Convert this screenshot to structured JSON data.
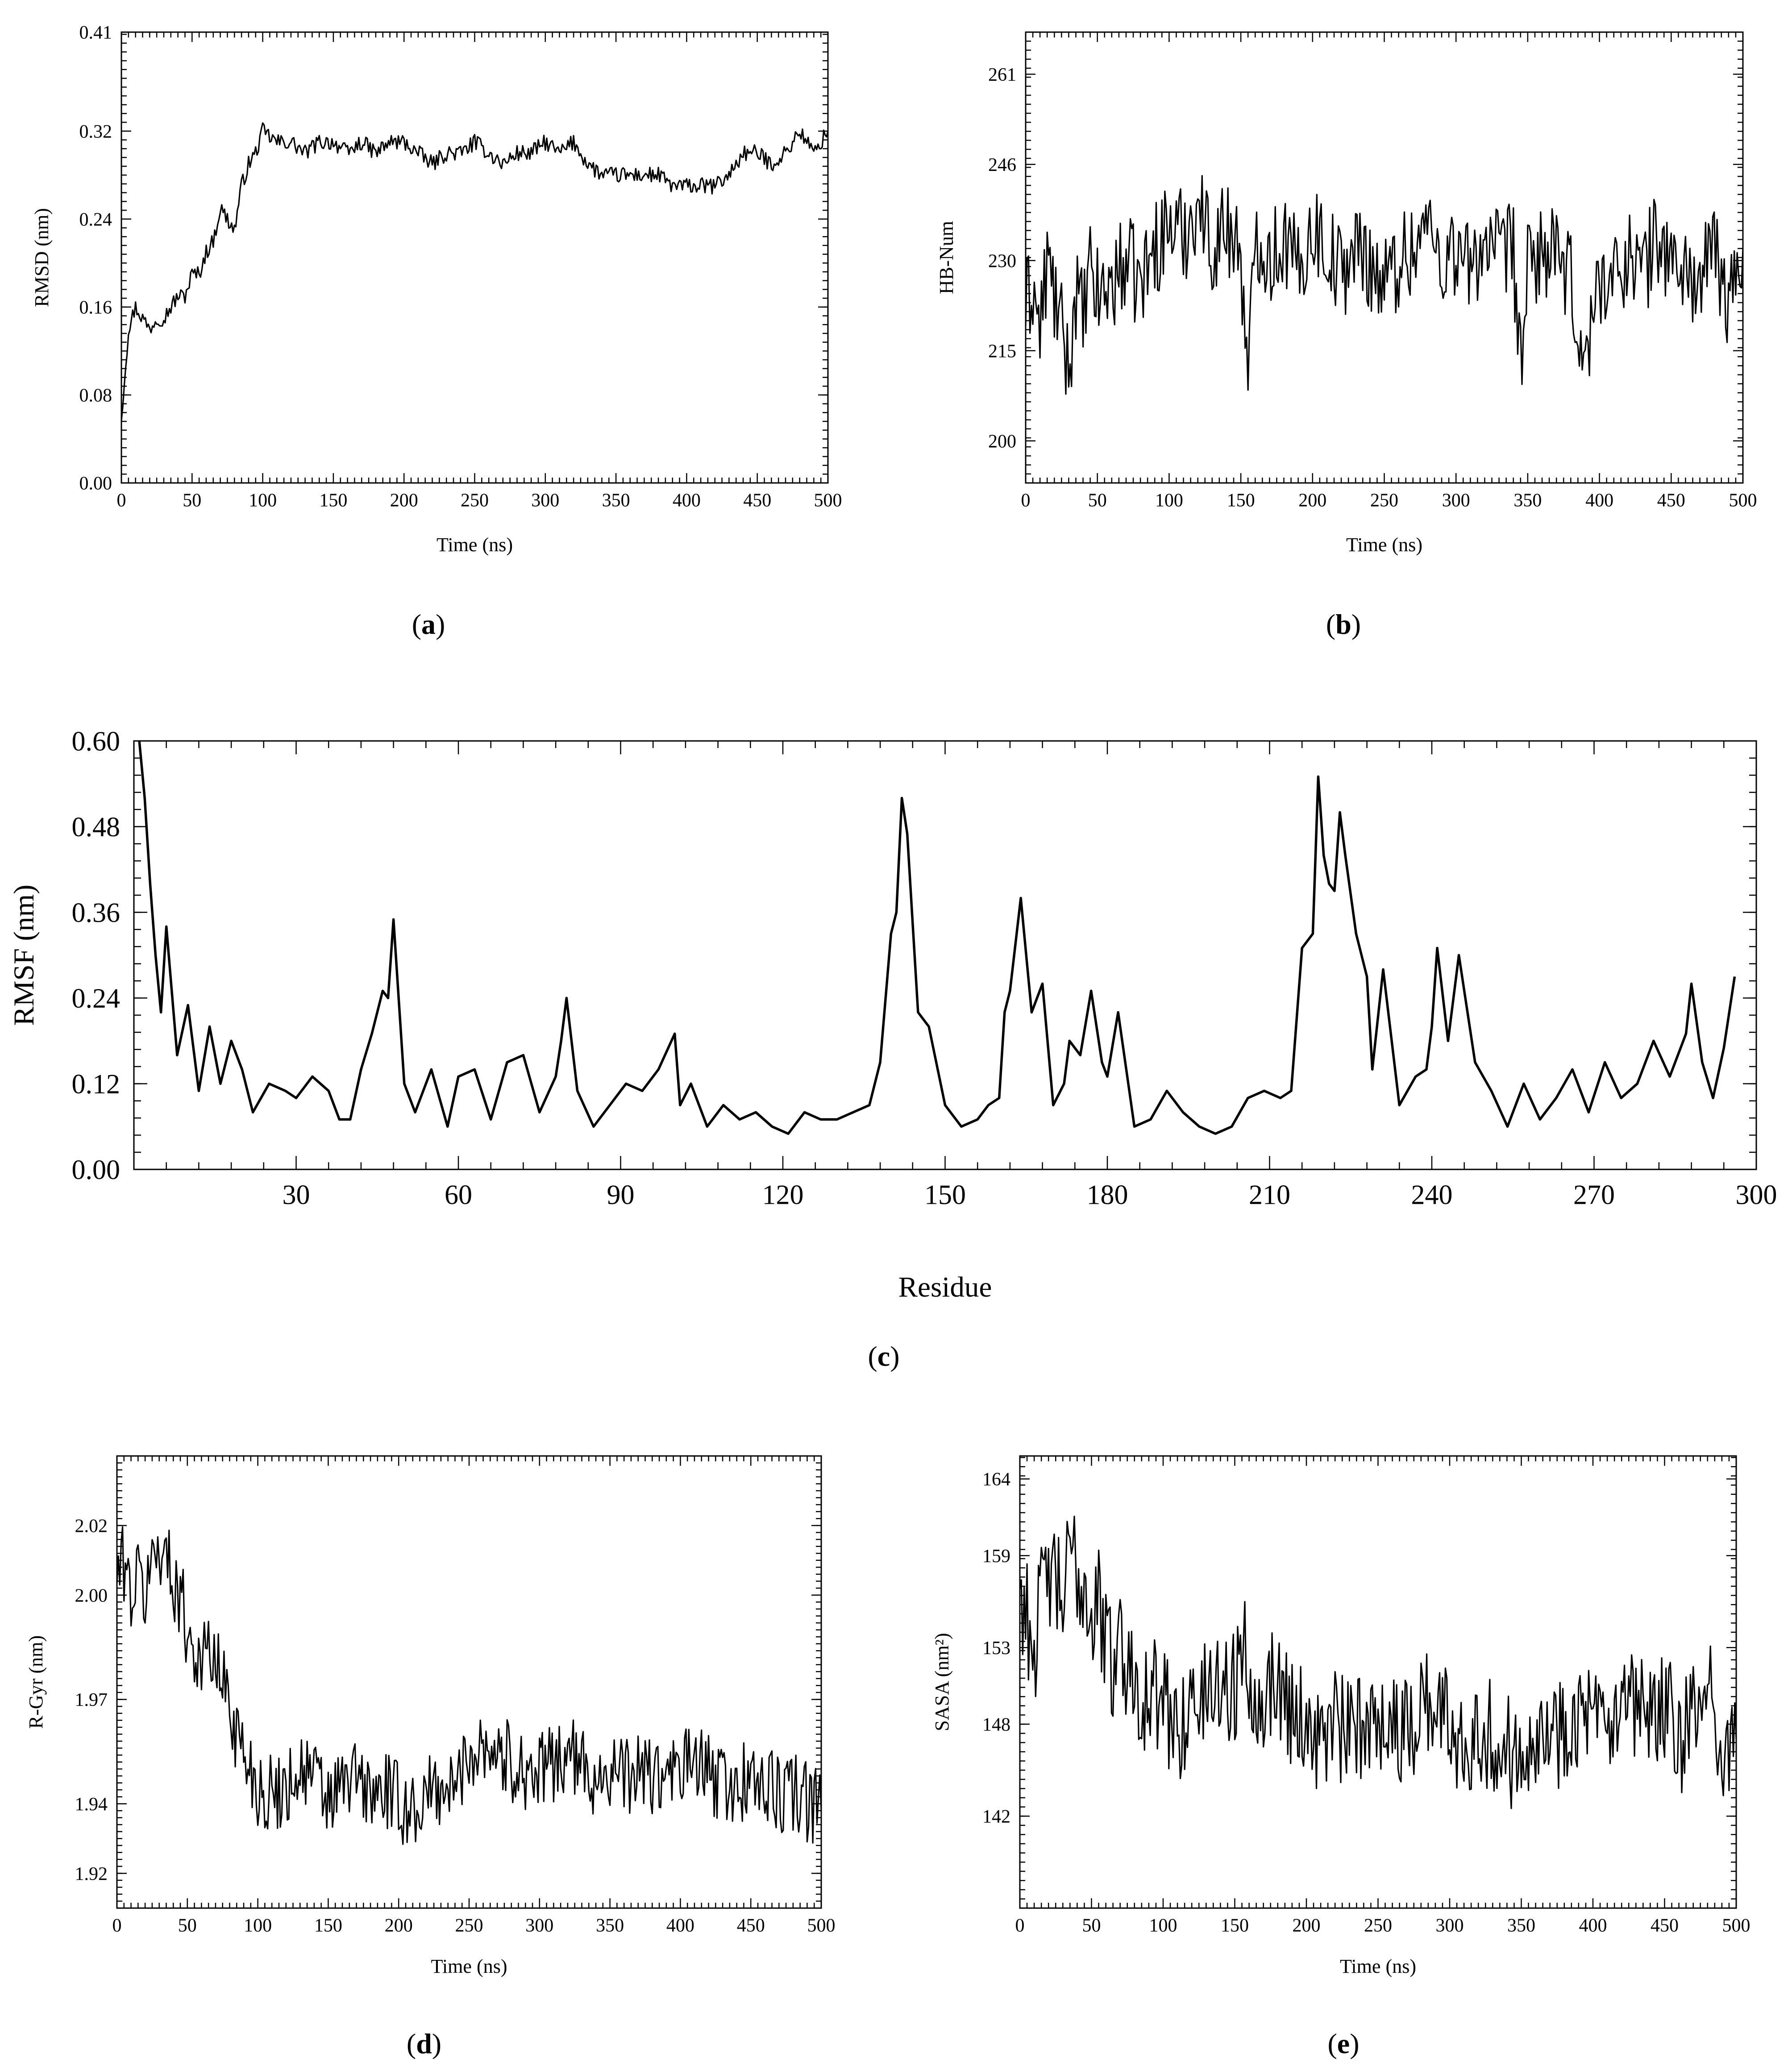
{
  "chart_data": [
    {
      "id": "a",
      "type": "line",
      "caption": "(a)",
      "caption_letter": "a",
      "xlabel": "Time (ns)",
      "ylabel": "RMSD (nm)",
      "xlim": [
        0,
        500
      ],
      "ylim": [
        0,
        0.41
      ],
      "xticks": [
        "0",
        "50",
        "100",
        "150",
        "200",
        "250",
        "300",
        "350",
        "400",
        "450",
        "500"
      ],
      "yticks": [
        "0.00",
        "0.08",
        "0.16",
        "0.24",
        "0.32",
        "0.41"
      ],
      "series": [
        {
          "x": [
            0,
            5,
            10,
            15,
            20,
            25,
            30,
            35,
            40,
            45,
            50,
            55,
            60,
            65,
            70,
            75,
            80,
            85,
            90,
            95,
            100,
            110,
            120,
            130,
            140,
            150,
            160,
            170,
            180,
            190,
            200,
            210,
            220,
            230,
            240,
            250,
            260,
            270,
            280,
            290,
            300,
            310,
            320,
            330,
            340,
            350,
            360,
            370,
            380,
            390,
            400,
            410,
            420,
            430,
            440,
            450,
            460,
            470,
            480,
            490,
            500
          ],
          "values": [
            0.06,
            0.14,
            0.16,
            0.15,
            0.14,
            0.15,
            0.15,
            0.16,
            0.17,
            0.17,
            0.19,
            0.19,
            0.21,
            0.22,
            0.25,
            0.24,
            0.23,
            0.27,
            0.29,
            0.3,
            0.32,
            0.31,
            0.31,
            0.3,
            0.31,
            0.31,
            0.3,
            0.31,
            0.3,
            0.31,
            0.31,
            0.3,
            0.29,
            0.3,
            0.3,
            0.31,
            0.3,
            0.29,
            0.3,
            0.3,
            0.31,
            0.3,
            0.31,
            0.29,
            0.28,
            0.28,
            0.28,
            0.28,
            0.28,
            0.27,
            0.27,
            0.27,
            0.27,
            0.28,
            0.3,
            0.3,
            0.29,
            0.3,
            0.32,
            0.3,
            0.32
          ]
        }
      ]
    },
    {
      "id": "b",
      "type": "line",
      "caption": "(b)",
      "caption_letter": "b",
      "xlabel": "Time (ns)",
      "ylabel": "HB-Num",
      "xlim": [
        0,
        500
      ],
      "ylim": [
        193,
        268
      ],
      "xticks": [
        "0",
        "50",
        "100",
        "150",
        "200",
        "250",
        "300",
        "350",
        "400",
        "450",
        "500"
      ],
      "yticks": [
        "200",
        "215",
        "230",
        "246",
        "261"
      ],
      "ytick_values": [
        200,
        215,
        230,
        246,
        261
      ],
      "series": [
        {
          "x": [
            0,
            5,
            10,
            15,
            20,
            25,
            30,
            35,
            40,
            45,
            50,
            60,
            70,
            80,
            90,
            100,
            110,
            120,
            130,
            140,
            150,
            155,
            160,
            170,
            180,
            190,
            200,
            210,
            220,
            230,
            240,
            250,
            260,
            270,
            280,
            290,
            300,
            310,
            320,
            330,
            340,
            345,
            350,
            360,
            370,
            380,
            390,
            400,
            410,
            420,
            430,
            440,
            450,
            460,
            470,
            480,
            490,
            500
          ],
          "values": [
            222,
            226,
            218,
            230,
            224,
            218,
            212,
            225,
            220,
            228,
            224,
            226,
            230,
            226,
            232,
            236,
            234,
            240,
            232,
            236,
            232,
            207,
            236,
            230,
            234,
            228,
            236,
            232,
            228,
            232,
            230,
            226,
            230,
            232,
            236,
            230,
            232,
            228,
            234,
            230,
            232,
            212,
            228,
            232,
            230,
            226,
            212,
            228,
            226,
            232,
            228,
            234,
            230,
            228,
            226,
            232,
            222,
            232
          ]
        }
      ]
    },
    {
      "id": "c",
      "type": "line",
      "caption": "(c)",
      "caption_letter": "c",
      "xlabel": "Residue",
      "ylabel": "RMSF (nm)",
      "xlim": [
        0,
        300
      ],
      "ylim": [
        0,
        0.6
      ],
      "xticks": [
        "30",
        "60",
        "90",
        "120",
        "150",
        "180",
        "210",
        "240",
        "270",
        "300"
      ],
      "xtick_values": [
        30,
        60,
        90,
        120,
        150,
        180,
        210,
        240,
        270,
        300
      ],
      "yticks": [
        "0.00",
        "0.12",
        "0.24",
        "0.36",
        "0.48",
        "0.60"
      ],
      "series": [
        {
          "x": [
            1,
            2,
            3,
            4,
            5,
            6,
            8,
            10,
            12,
            14,
            16,
            18,
            20,
            22,
            25,
            28,
            30,
            33,
            36,
            38,
            40,
            42,
            44,
            46,
            47,
            48,
            50,
            52,
            55,
            58,
            60,
            63,
            66,
            69,
            72,
            75,
            78,
            79,
            80,
            82,
            85,
            88,
            91,
            94,
            97,
            100,
            101,
            103,
            106,
            109,
            112,
            115,
            118,
            121,
            124,
            127,
            130,
            133,
            136,
            138,
            140,
            141,
            142,
            143,
            145,
            147,
            150,
            153,
            156,
            158,
            160,
            161,
            162,
            164,
            166,
            168,
            170,
            172,
            173,
            175,
            177,
            179,
            180,
            182,
            185,
            188,
            191,
            194,
            197,
            200,
            203,
            206,
            209,
            212,
            214,
            216,
            218,
            219,
            220,
            221,
            222,
            223,
            224,
            226,
            228,
            229,
            231,
            234,
            237,
            239,
            240,
            241,
            243,
            245,
            248,
            251,
            254,
            257,
            260,
            263,
            266,
            269,
            272,
            275,
            278,
            281,
            284,
            287,
            288,
            290,
            292,
            294,
            296
          ],
          "values": [
            0.6,
            0.52,
            0.4,
            0.3,
            0.22,
            0.34,
            0.16,
            0.23,
            0.11,
            0.2,
            0.12,
            0.18,
            0.14,
            0.08,
            0.12,
            0.11,
            0.1,
            0.13,
            0.11,
            0.07,
            0.07,
            0.14,
            0.19,
            0.25,
            0.24,
            0.35,
            0.12,
            0.08,
            0.14,
            0.06,
            0.13,
            0.14,
            0.07,
            0.15,
            0.16,
            0.08,
            0.13,
            0.18,
            0.24,
            0.11,
            0.06,
            0.09,
            0.12,
            0.11,
            0.14,
            0.19,
            0.09,
            0.12,
            0.06,
            0.09,
            0.07,
            0.08,
            0.06,
            0.05,
            0.08,
            0.07,
            0.07,
            0.08,
            0.09,
            0.15,
            0.33,
            0.36,
            0.52,
            0.47,
            0.22,
            0.2,
            0.09,
            0.06,
            0.07,
            0.09,
            0.1,
            0.22,
            0.25,
            0.38,
            0.22,
            0.26,
            0.09,
            0.12,
            0.18,
            0.16,
            0.25,
            0.15,
            0.13,
            0.22,
            0.06,
            0.07,
            0.11,
            0.08,
            0.06,
            0.05,
            0.06,
            0.1,
            0.11,
            0.1,
            0.11,
            0.31,
            0.33,
            0.55,
            0.44,
            0.4,
            0.39,
            0.5,
            0.44,
            0.33,
            0.27,
            0.14,
            0.28,
            0.09,
            0.13,
            0.14,
            0.2,
            0.31,
            0.18,
            0.3,
            0.15,
            0.11,
            0.06,
            0.12,
            0.07,
            0.1,
            0.14,
            0.08,
            0.15,
            0.1,
            0.12,
            0.18,
            0.13,
            0.19,
            0.26,
            0.15,
            0.1,
            0.17,
            0.27
          ]
        }
      ]
    },
    {
      "id": "d",
      "type": "line",
      "caption": "(d)",
      "caption_letter": "d",
      "xlabel": "Time (ns)",
      "ylabel": "R-Gyr (nm)",
      "xlim": [
        0,
        500
      ],
      "ylim": [
        1.91,
        2.04
      ],
      "xticks": [
        "0",
        "50",
        "100",
        "150",
        "200",
        "250",
        "300",
        "350",
        "400",
        "450",
        "500"
      ],
      "yticks": [
        "1.92",
        "1.94",
        "1.97",
        "2.00",
        "2.02"
      ],
      "ytick_values": [
        1.92,
        1.94,
        1.97,
        2.0,
        2.02
      ],
      "series": [
        {
          "x": [
            0,
            5,
            10,
            15,
            20,
            25,
            30,
            35,
            40,
            45,
            50,
            55,
            60,
            65,
            70,
            75,
            80,
            85,
            90,
            95,
            100,
            110,
            120,
            130,
            140,
            150,
            160,
            170,
            180,
            190,
            200,
            210,
            220,
            230,
            240,
            250,
            260,
            270,
            280,
            290,
            300,
            310,
            320,
            330,
            340,
            350,
            360,
            370,
            380,
            390,
            400,
            410,
            420,
            430,
            440,
            450,
            460,
            470,
            480,
            490,
            500
          ],
          "values": [
            2.005,
            2.01,
            2.0,
            2.005,
            2.0,
            2.01,
            2.015,
            2.01,
            2.005,
            2.0,
            1.99,
            1.985,
            1.98,
            1.985,
            1.98,
            1.975,
            1.97,
            1.96,
            1.955,
            1.95,
            1.945,
            1.942,
            1.945,
            1.95,
            1.948,
            1.94,
            1.945,
            1.948,
            1.942,
            1.944,
            1.94,
            1.938,
            1.942,
            1.945,
            1.944,
            1.955,
            1.958,
            1.955,
            1.952,
            1.95,
            1.948,
            1.952,
            1.955,
            1.95,
            1.948,
            1.95,
            1.947,
            1.95,
            1.948,
            1.946,
            1.95,
            1.952,
            1.948,
            1.946,
            1.944,
            1.948,
            1.945,
            1.942,
            1.944,
            1.94,
            1.938
          ]
        }
      ]
    },
    {
      "id": "e",
      "type": "line",
      "caption": "(e)",
      "caption_letter": "e",
      "xlabel": "Time (ns)",
      "ylabel": "SASA (nm²)",
      "xlim": [
        0,
        500
      ],
      "ylim": [
        136,
        165.5
      ],
      "xticks": [
        "0",
        "50",
        "100",
        "150",
        "200",
        "250",
        "300",
        "350",
        "400",
        "450",
        "500"
      ],
      "yticks": [
        "142",
        "148",
        "153",
        "159",
        "164"
      ],
      "ytick_values": [
        142,
        148,
        153,
        159,
        164
      ],
      "series": [
        {
          "x": [
            0,
            5,
            10,
            15,
            20,
            25,
            30,
            35,
            40,
            45,
            50,
            55,
            60,
            65,
            70,
            75,
            80,
            85,
            90,
            95,
            100,
            110,
            120,
            130,
            140,
            150,
            155,
            160,
            170,
            180,
            190,
            200,
            210,
            220,
            230,
            240,
            250,
            260,
            270,
            280,
            290,
            300,
            310,
            320,
            330,
            340,
            350,
            360,
            370,
            380,
            390,
            400,
            410,
            420,
            430,
            440,
            450,
            460,
            470,
            480,
            490,
            500
          ],
          "values": [
            157,
            155,
            153,
            156,
            158,
            157,
            156,
            159,
            158,
            157,
            155,
            156,
            153,
            152,
            154,
            151,
            152,
            150,
            149,
            150,
            149,
            148,
            149,
            150,
            151,
            150,
            154,
            151,
            150,
            151,
            149,
            148,
            147,
            148,
            147,
            148,
            149,
            148,
            147,
            150,
            149,
            148,
            147,
            148,
            147,
            146,
            147,
            148,
            147,
            148,
            149,
            148,
            147,
            148,
            149,
            148,
            149,
            147,
            148,
            150,
            147,
            147
          ]
        }
      ]
    }
  ]
}
